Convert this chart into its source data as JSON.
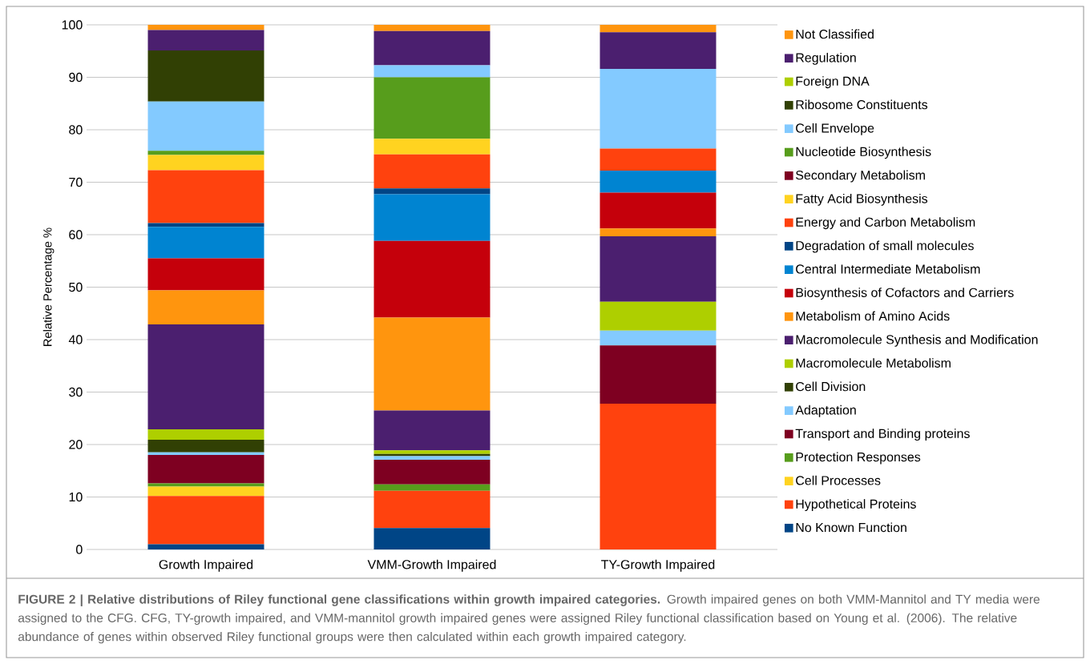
{
  "chart_data": {
    "type": "bar",
    "stacked": true,
    "ylabel": "Relative Percentage %",
    "categories": [
      "Growth Impaired",
      "VMM-Growth Impaired",
      "TY-Growth Impaired"
    ],
    "ylim": [
      0,
      100
    ],
    "yticks": [
      0,
      10,
      20,
      30,
      40,
      50,
      60,
      70,
      80,
      90,
      100
    ],
    "grid": "y",
    "legend": "right",
    "series": [
      {
        "name": "No Known Function",
        "color": "#004586",
        "values": [
          1.0,
          4.1,
          0
        ]
      },
      {
        "name": "Hypothetical Proteins",
        "color": "#ff420e",
        "values": [
          9.2,
          7.1,
          27.8
        ]
      },
      {
        "name": "Cell Processes",
        "color": "#ffd320",
        "values": [
          1.8,
          0,
          0
        ]
      },
      {
        "name": "Protection Responses",
        "color": "#579d1c",
        "values": [
          0.6,
          1.2,
          0
        ]
      },
      {
        "name": "Transport and Binding proteins",
        "color": "#7e0021",
        "values": [
          5.4,
          4.7,
          11.1
        ]
      },
      {
        "name": "Adaptation",
        "color": "#83caff",
        "values": [
          0.5,
          0.7,
          2.8
        ]
      },
      {
        "name": "Cell Division",
        "color": "#314004",
        "values": [
          2.4,
          0.4,
          0
        ]
      },
      {
        "name": "Macromolecule Metabolism",
        "color": "#aecf00",
        "values": [
          2.0,
          0.7,
          5.5
        ]
      },
      {
        "name": "Macromolecule Synthesis and Modification",
        "color": "#4b1f6f",
        "values": [
          20.0,
          7.6,
          12.5
        ]
      },
      {
        "name": "Metabolism of Amino Acids",
        "color": "#ff950e",
        "values": [
          6.5,
          17.7,
          1.5
        ]
      },
      {
        "name": "Biosynthesis of Cofactors and Carriers",
        "color": "#c5000b",
        "values": [
          6.1,
          14.6,
          6.8
        ]
      },
      {
        "name": "Central Intermediate Metabolism",
        "color": "#0084d1",
        "values": [
          6.0,
          8.9,
          4.2
        ]
      },
      {
        "name": "Degradation of small molecules",
        "color": "#004586",
        "values": [
          0.7,
          1.1,
          0
        ]
      },
      {
        "name": "Energy and Carbon Metabolism",
        "color": "#ff420e",
        "values": [
          10.1,
          6.5,
          4.2
        ]
      },
      {
        "name": "Fatty Acid Biosynthesis",
        "color": "#ffd320",
        "values": [
          2.9,
          3.0,
          0
        ]
      },
      {
        "name": "Secondary Metabolism",
        "color": "#7e0021",
        "values": [
          0,
          0,
          0
        ]
      },
      {
        "name": "Nucleotide Biosynthesis",
        "color": "#579d1c",
        "values": [
          0.8,
          11.7,
          0
        ]
      },
      {
        "name": "Cell Envelope",
        "color": "#83caff",
        "values": [
          9.4,
          2.3,
          15.2
        ]
      },
      {
        "name": "Ribosome Constituents",
        "color": "#314004",
        "values": [
          9.7,
          0,
          0
        ]
      },
      {
        "name": "Foreign DNA",
        "color": "#aecf00",
        "values": [
          0,
          0,
          0
        ]
      },
      {
        "name": "Regulation",
        "color": "#4b1f6f",
        "values": [
          3.9,
          6.5,
          7.0
        ]
      },
      {
        "name": "Not Classified",
        "color": "#ff950e",
        "values": [
          1.0,
          1.2,
          1.4
        ]
      }
    ],
    "annotations": [
      "**FIGURE 2 | Relative distributions of Riley functional gene classifications within growth impaired categories.** Growth impaired genes on both VMM-Mannitol and TY media were assigned to the CFG. CFG, TY-growth impaired, and VMM-mannitol growth impaired genes were assigned Riley functional classification based on Young et al. (2006). The relative abundance of genes within observed Riley functional groups were then calculated within each growth impaired category."
    ]
  }
}
